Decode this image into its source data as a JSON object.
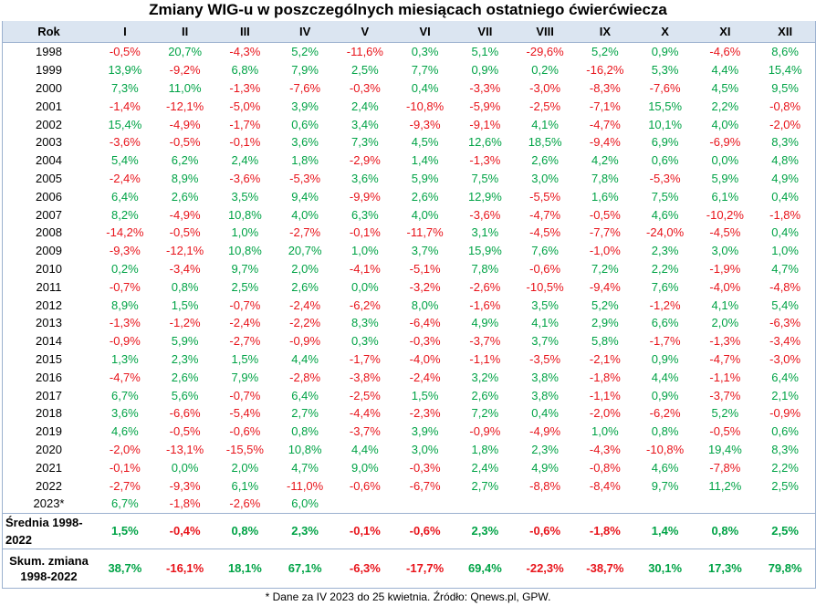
{
  "title": "Zmiany WIG-u w poszczególnych miesiącach ostatniego ćwierćwiecza",
  "colors": {
    "positive": "#00a346",
    "negative": "#e8141b",
    "header_bg": "#dbe5f1"
  },
  "header": [
    "Rok",
    "I",
    "II",
    "III",
    "IV",
    "V",
    "VI",
    "VII",
    "VIII",
    "IX",
    "X",
    "XI",
    "XII"
  ],
  "rows": [
    {
      "year": "1998",
      "values": [
        "-0,5%",
        "20,7%",
        "-4,3%",
        "5,2%",
        "-11,6%",
        "0,3%",
        "5,1%",
        "-29,6%",
        "5,2%",
        "0,9%",
        "-4,6%",
        "8,6%"
      ]
    },
    {
      "year": "1999",
      "values": [
        "13,9%",
        "-9,2%",
        "6,8%",
        "7,9%",
        "2,5%",
        "7,7%",
        "0,9%",
        "0,2%",
        "-16,2%",
        "5,3%",
        "4,4%",
        "15,4%"
      ]
    },
    {
      "year": "2000",
      "values": [
        "7,3%",
        "11,0%",
        "-1,3%",
        "-7,6%",
        "-0,3%",
        "0,4%",
        "-3,3%",
        "-3,0%",
        "-8,3%",
        "-7,6%",
        "4,5%",
        "9,5%"
      ]
    },
    {
      "year": "2001",
      "values": [
        "-1,4%",
        "-12,1%",
        "-5,0%",
        "3,9%",
        "2,4%",
        "-10,8%",
        "-5,9%",
        "-2,5%",
        "-7,1%",
        "15,5%",
        "2,2%",
        "-0,8%"
      ]
    },
    {
      "year": "2002",
      "values": [
        "15,4%",
        "-4,9%",
        "-1,7%",
        "0,6%",
        "3,4%",
        "-9,3%",
        "-9,1%",
        "4,1%",
        "-4,7%",
        "10,1%",
        "4,0%",
        "-2,0%"
      ]
    },
    {
      "year": "2003",
      "values": [
        "-3,6%",
        "-0,5%",
        "-0,1%",
        "3,6%",
        "7,3%",
        "4,5%",
        "12,6%",
        "18,5%",
        "-9,4%",
        "6,9%",
        "-6,9%",
        "8,3%"
      ]
    },
    {
      "year": "2004",
      "values": [
        "5,4%",
        "6,2%",
        "2,4%",
        "1,8%",
        "-2,9%",
        "1,4%",
        "-1,3%",
        "2,6%",
        "4,2%",
        "0,6%",
        "0,0%",
        "4,8%"
      ]
    },
    {
      "year": "2005",
      "values": [
        "-2,4%",
        "8,9%",
        "-3,6%",
        "-5,3%",
        "3,6%",
        "5,9%",
        "7,5%",
        "3,0%",
        "7,8%",
        "-5,3%",
        "5,9%",
        "4,9%"
      ]
    },
    {
      "year": "2006",
      "values": [
        "6,4%",
        "2,6%",
        "3,5%",
        "9,4%",
        "-9,9%",
        "2,6%",
        "12,9%",
        "-5,5%",
        "1,6%",
        "7,5%",
        "6,1%",
        "0,4%"
      ]
    },
    {
      "year": "2007",
      "values": [
        "8,2%",
        "-4,9%",
        "10,8%",
        "4,0%",
        "6,3%",
        "4,0%",
        "-3,6%",
        "-4,7%",
        "-0,5%",
        "4,6%",
        "-10,2%",
        "-1,8%"
      ]
    },
    {
      "year": "2008",
      "values": [
        "-14,2%",
        "-0,5%",
        "1,0%",
        "-2,7%",
        "-0,1%",
        "-11,7%",
        "3,1%",
        "-4,5%",
        "-7,7%",
        "-24,0%",
        "-4,5%",
        "0,4%"
      ]
    },
    {
      "year": "2009",
      "values": [
        "-9,3%",
        "-12,1%",
        "10,8%",
        "20,7%",
        "1,0%",
        "3,7%",
        "15,9%",
        "7,6%",
        "-1,0%",
        "2,3%",
        "3,0%",
        "1,0%"
      ]
    },
    {
      "year": "2010",
      "values": [
        "0,2%",
        "-3,4%",
        "9,7%",
        "2,0%",
        "-4,1%",
        "-5,1%",
        "7,8%",
        "-0,6%",
        "7,2%",
        "2,2%",
        "-1,9%",
        "4,7%"
      ]
    },
    {
      "year": "2011",
      "values": [
        "-0,7%",
        "0,8%",
        "2,5%",
        "2,6%",
        "0,0%",
        "-3,2%",
        "-2,6%",
        "-10,5%",
        "-9,4%",
        "7,6%",
        "-4,0%",
        "-4,8%"
      ]
    },
    {
      "year": "2012",
      "values": [
        "8,9%",
        "1,5%",
        "-0,7%",
        "-2,4%",
        "-6,2%",
        "8,0%",
        "-1,6%",
        "3,5%",
        "5,2%",
        "-1,2%",
        "4,1%",
        "5,4%"
      ]
    },
    {
      "year": "2013",
      "values": [
        "-1,3%",
        "-1,2%",
        "-2,4%",
        "-2,2%",
        "8,3%",
        "-6,4%",
        "4,9%",
        "4,1%",
        "2,9%",
        "6,6%",
        "2,0%",
        "-6,3%"
      ]
    },
    {
      "year": "2014",
      "values": [
        "-0,9%",
        "5,9%",
        "-2,7%",
        "-0,9%",
        "0,3%",
        "-0,3%",
        "-3,7%",
        "3,7%",
        "5,8%",
        "-1,7%",
        "-1,3%",
        "-3,4%"
      ]
    },
    {
      "year": "2015",
      "values": [
        "1,3%",
        "2,3%",
        "1,5%",
        "4,4%",
        "-1,7%",
        "-4,0%",
        "-1,1%",
        "-3,5%",
        "-2,1%",
        "0,9%",
        "-4,7%",
        "-3,0%"
      ]
    },
    {
      "year": "2016",
      "values": [
        "-4,7%",
        "2,6%",
        "7,9%",
        "-2,8%",
        "-3,8%",
        "-2,4%",
        "3,2%",
        "3,8%",
        "-1,8%",
        "4,4%",
        "-1,1%",
        "6,4%"
      ]
    },
    {
      "year": "2017",
      "values": [
        "6,7%",
        "5,6%",
        "-0,7%",
        "6,4%",
        "-2,5%",
        "1,5%",
        "2,6%",
        "3,8%",
        "-1,1%",
        "0,9%",
        "-3,7%",
        "2,1%"
      ]
    },
    {
      "year": "2018",
      "values": [
        "3,6%",
        "-6,6%",
        "-5,4%",
        "2,7%",
        "-4,4%",
        "-2,3%",
        "7,2%",
        "0,4%",
        "-2,0%",
        "-6,2%",
        "5,2%",
        "-0,9%"
      ]
    },
    {
      "year": "2019",
      "values": [
        "4,6%",
        "-0,5%",
        "-0,6%",
        "0,8%",
        "-3,7%",
        "3,9%",
        "-0,9%",
        "-4,9%",
        "1,0%",
        "0,8%",
        "-0,5%",
        "0,6%"
      ]
    },
    {
      "year": "2020",
      "values": [
        "-2,0%",
        "-13,1%",
        "-15,5%",
        "10,8%",
        "4,4%",
        "3,0%",
        "1,8%",
        "2,3%",
        "-4,3%",
        "-10,8%",
        "19,4%",
        "8,3%"
      ]
    },
    {
      "year": "2021",
      "values": [
        "-0,1%",
        "0,0%",
        "2,0%",
        "4,7%",
        "9,0%",
        "-0,3%",
        "2,4%",
        "4,9%",
        "-0,8%",
        "4,6%",
        "-7,8%",
        "2,2%"
      ]
    },
    {
      "year": "2022",
      "values": [
        "-2,7%",
        "-9,3%",
        "6,1%",
        "-11,0%",
        "-0,6%",
        "-6,7%",
        "2,7%",
        "-8,8%",
        "-8,4%",
        "9,7%",
        "11,2%",
        "2,5%"
      ]
    },
    {
      "year": "2023*",
      "values": [
        "6,7%",
        "-1,8%",
        "-2,6%",
        "6,0%",
        "",
        "",
        "",
        "",
        "",
        "",
        "",
        ""
      ]
    }
  ],
  "average": {
    "label": "Średnia 1998-2022",
    "values": [
      "1,5%",
      "-0,4%",
      "0,8%",
      "2,3%",
      "-0,1%",
      "-0,6%",
      "2,3%",
      "-0,6%",
      "-1,8%",
      "1,4%",
      "0,8%",
      "2,5%"
    ]
  },
  "cumulative": {
    "label_line1": "Skum. zmiana",
    "label_line2": "1998-2022",
    "values": [
      "38,7%",
      "-16,1%",
      "18,1%",
      "67,1%",
      "-6,3%",
      "-17,7%",
      "69,4%",
      "-22,3%",
      "-38,7%",
      "30,1%",
      "17,3%",
      "79,8%"
    ]
  },
  "footnote": "* Dane za IV 2023 do 25 kwietnia. Źródło: Qnews.pl, GPW."
}
